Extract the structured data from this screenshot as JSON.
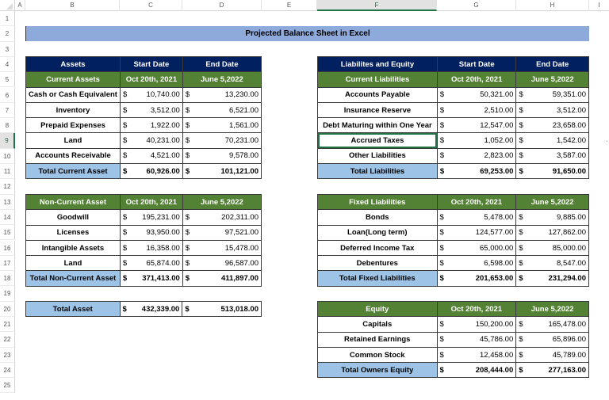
{
  "sheet": {
    "columns": [
      "A",
      "B",
      "C",
      "D",
      "E",
      "F",
      "G",
      "H",
      "I"
    ],
    "selected_column": "F",
    "rows": [
      "1",
      "2",
      "3",
      "4",
      "5",
      "6",
      "7",
      "8",
      "9",
      "10",
      "11",
      "12",
      "13",
      "14",
      "15",
      "16",
      "17",
      "18",
      "19",
      "20",
      "21",
      "22",
      "23",
      "24",
      "25"
    ],
    "selected_row": "9",
    "selected_cell": "F9"
  },
  "title": "Projected Balance Sheet in Excel",
  "current_assets": {
    "header": [
      "Assets",
      "Start Date",
      "End Date"
    ],
    "subheader": [
      "Current Assets",
      "Oct 20th, 2021",
      "June 5,2022"
    ],
    "currency": "$",
    "rows": [
      {
        "label": "Cash or Cash Equivalent",
        "start": "10,740.00",
        "end": "13,230.00"
      },
      {
        "label": "Inventory",
        "start": "3,512.00",
        "end": "6,521.00"
      },
      {
        "label": "Prepaid Expenses",
        "start": "1,922.00",
        "end": "1,561.00"
      },
      {
        "label": "Land",
        "start": "40,231.00",
        "end": "70,231.00"
      },
      {
        "label": "Accounts Receivable",
        "start": "4,521.00",
        "end": "9,578.00"
      }
    ],
    "total": {
      "label": "Total Current Asset",
      "start": "60,926.00",
      "end": "101,121.00"
    }
  },
  "non_current_assets": {
    "subheader": [
      "Non-Current Asset",
      "Oct 20th, 2021",
      "June 5,2022"
    ],
    "currency": "$",
    "rows": [
      {
        "label": "Goodwill",
        "start": "195,231.00",
        "end": "202,311.00"
      },
      {
        "label": "Licenses",
        "start": "93,950.00",
        "end": "97,521.00"
      },
      {
        "label": "Intangible Assets",
        "start": "16,358.00",
        "end": "15,478.00"
      },
      {
        "label": "Land",
        "start": "65,874.00",
        "end": "96,587.00"
      }
    ],
    "total": {
      "label": "Total Non-Current Asset",
      "start": "371,413.00",
      "end": "411,897.00"
    }
  },
  "total_asset": {
    "label": "Total Asset",
    "currency": "$",
    "start": "432,339.00",
    "end": "513,018.00"
  },
  "current_liabilities": {
    "header": [
      "Liabilites and Equity",
      "Start Date",
      "End Date"
    ],
    "subheader": [
      "Current Liabilities",
      "Oct 20th, 2021",
      "June 5,2022"
    ],
    "currency": "$",
    "rows": [
      {
        "label": "Accounts Payable",
        "start": "50,321.00",
        "end": "59,351.00"
      },
      {
        "label": "Insurance Reserve",
        "start": "2,510.00",
        "end": "3,512.00"
      },
      {
        "label": "Debt Maturing within One Year",
        "start": "12,547.00",
        "end": "23,658.00"
      },
      {
        "label": "Accrued Taxes",
        "start": "1,052.00",
        "end": "1,542.00"
      },
      {
        "label": "Other Liabilities",
        "start": "2,823.00",
        "end": "3,587.00"
      }
    ],
    "total": {
      "label": "Total Liabilities",
      "start": "69,253.00",
      "end": "91,650.00"
    }
  },
  "fixed_liabilities": {
    "subheader": [
      "Fixed Liabilities",
      "Oct 20th, 2021",
      "June 5,2022"
    ],
    "currency": "$",
    "rows": [
      {
        "label": "Bonds",
        "start": "5,478.00",
        "end": "9,885.00"
      },
      {
        "label": "Loan(Long term)",
        "start": "124,577.00",
        "end": "127,862.00"
      },
      {
        "label": "Deferred Income Tax",
        "start": "65,000.00",
        "end": "85,000.00"
      },
      {
        "label": "Debentures",
        "start": "6,598.00",
        "end": "8,547.00"
      }
    ],
    "total": {
      "label": "Total Fixed Liabilities",
      "start": "201,653.00",
      "end": "231,294.00"
    }
  },
  "equity": {
    "subheader": [
      "Equity",
      "Oct 20th, 2021",
      "June 5,2022"
    ],
    "currency": "$",
    "rows": [
      {
        "label": "Capitals",
        "start": "150,200.00",
        "end": "165,478.00"
      },
      {
        "label": "Retained Earnings",
        "start": "45,786.00",
        "end": "65,896.00"
      },
      {
        "label": "Common Stock",
        "start": "12,458.00",
        "end": "45,789.00"
      }
    ],
    "total": {
      "label": "Total Owners Equity",
      "start": "208,444.00",
      "end": "277,163.00"
    }
  },
  "colors": {
    "navy_header": "#002060",
    "green_header": "#548235",
    "total_label_bg": "#9dc3e6",
    "title_bg": "#8eaadb",
    "selection": "#217346"
  }
}
